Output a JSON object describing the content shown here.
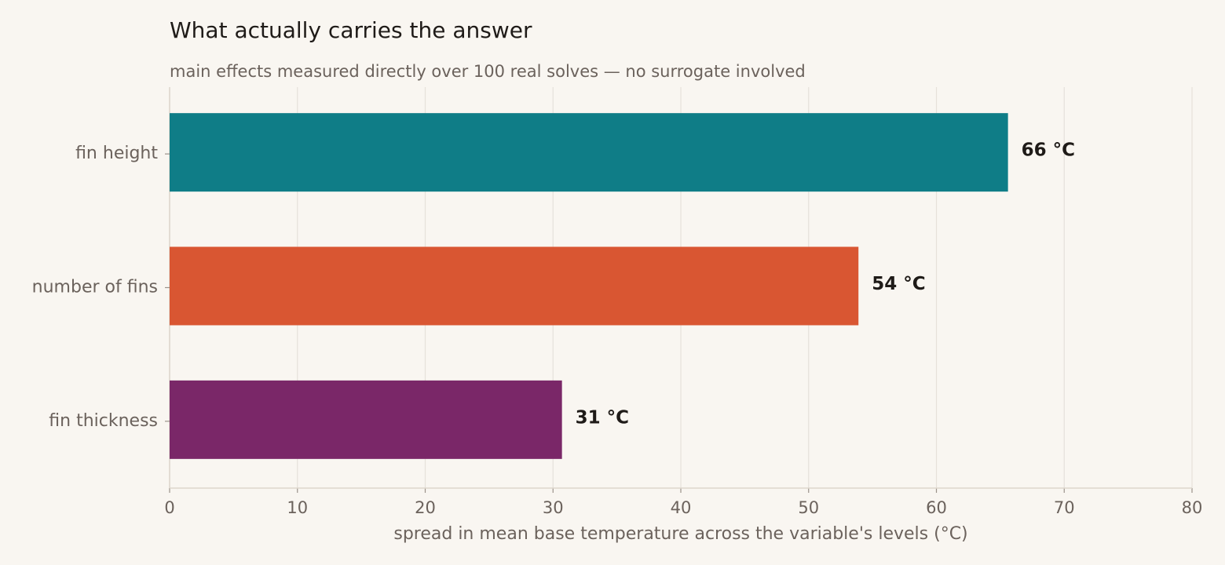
{
  "chart_data": {
    "type": "barh",
    "title": "What actually carries the answer",
    "subtitle": "main effects measured directly over 100 real solves — no surrogate involved",
    "categories": [
      "fin height",
      "number of fins",
      "fin thickness"
    ],
    "values": [
      65.6,
      53.9,
      30.7
    ],
    "value_labels": [
      "66 °C",
      "54 °C",
      "31 °C"
    ],
    "colors": [
      "#0f7d87",
      "#d95632",
      "#7a2768"
    ],
    "xlabel": "spread in mean base temperature across the variable's levels  (°C)",
    "xlim": [
      0,
      80
    ],
    "xticks": [
      0,
      10,
      20,
      30,
      40,
      50,
      60,
      70,
      80
    ],
    "grid": true
  }
}
